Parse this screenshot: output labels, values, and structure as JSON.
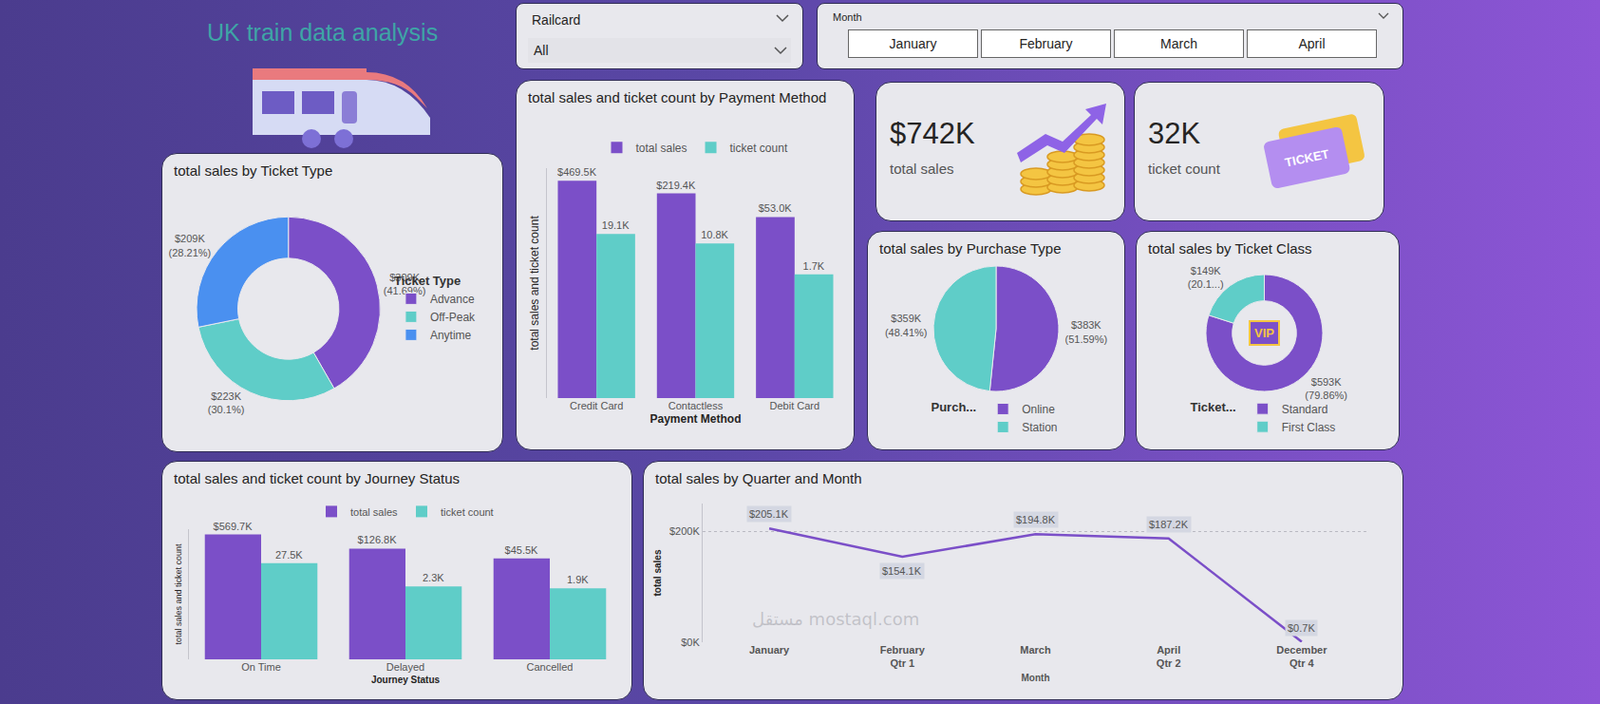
{
  "header": {
    "title": "UK train data analysis"
  },
  "slicers": [
    {
      "label": "Railcard",
      "value": "All"
    },
    {
      "label": "Month",
      "options": [
        "January",
        "February",
        "March",
        "April"
      ]
    }
  ],
  "cards": [
    {
      "value": "$742K",
      "label": "total sales"
    },
    {
      "value": "32K",
      "label": "ticket count",
      "icon_text": "TICKET"
    }
  ],
  "watermark": [
    "مستقل",
    "mostaql.com"
  ],
  "chart_data": [
    {
      "type": "donut",
      "title": "total sales by Ticket Type",
      "categories": [
        "Advance",
        "Off-Peak",
        "Anytime"
      ],
      "values": [
        309,
        223,
        209
      ],
      "value_labels": [
        "$309K (41.69%)",
        "$223K (30.1%)",
        "$209K (28.21%)"
      ],
      "colors": [
        "#7b4fc8",
        "#5fcdc8",
        "#4a90f0"
      ],
      "legend_title": "Ticket Type",
      "legend": "right",
      "data_labels": true
    },
    {
      "type": "bar",
      "title": "total sales and ticket count by Payment Method",
      "categories": [
        "Credit Card",
        "Contactless",
        "Debit Card"
      ],
      "series": [
        {
          "name": "total sales",
          "color": "#7b4fc8",
          "values": [
            469500,
            219400,
            53000
          ],
          "value_labels": [
            "$469.5K",
            "$219.4K",
            "$53.0K"
          ]
        },
        {
          "name": "ticket count",
          "color": "#5fcdc8",
          "values": [
            19100,
            10800,
            1700
          ],
          "value_labels": [
            "19.1K",
            "10.8K",
            "1.7K"
          ]
        }
      ],
      "xlabel": "Payment Method",
      "ylabel": "total sales and ticket count",
      "log": "y",
      "ylim": [
        1,
        1000000
      ],
      "tick_labels": "x",
      "grid": false,
      "legend": "top",
      "data_labels": true
    },
    {
      "type": "pie",
      "title": "total sales by Purchase Type",
      "categories": [
        "Online",
        "Station"
      ],
      "values": [
        383,
        359
      ],
      "value_labels": [
        "$383K (51.59%)",
        "$359K (48.41%)"
      ],
      "colors": [
        "#7b4fc8",
        "#5fcdc8"
      ],
      "legend_title": "Purch...",
      "legend": "bottom",
      "data_labels": true
    },
    {
      "type": "donut",
      "title": "total sales by Ticket Class",
      "categories": [
        "Standard",
        "First Class"
      ],
      "values": [
        593,
        149
      ],
      "value_labels": [
        "$593K (79.86%)",
        "$149K (20.1...)"
      ],
      "colors": [
        "#7b4fc8",
        "#5fcdc8"
      ],
      "legend_title": "Ticket...",
      "legend": "bottom",
      "data_labels": true,
      "center_label": "VIP"
    },
    {
      "type": "bar",
      "title": "total sales and ticket count by Journey Status",
      "categories": [
        "On Time",
        "Delayed",
        "Cancelled"
      ],
      "series": [
        {
          "name": "total sales",
          "color": "#7b4fc8",
          "values": [
            569700,
            126800,
            45500
          ],
          "value_labels": [
            "$569.7K",
            "$126.8K",
            "$45.5K"
          ]
        },
        {
          "name": "ticket count",
          "color": "#5fcdc8",
          "values": [
            27500,
            2300,
            1900
          ],
          "value_labels": [
            "27.5K",
            "2.3K",
            "1.9K"
          ]
        }
      ],
      "xlabel": "Journey Status",
      "ylabel": "total sales and ticket count",
      "log": "y",
      "ylim": [
        1,
        1000000
      ],
      "tick_labels": "x",
      "grid": false,
      "legend": "top",
      "data_labels": true
    },
    {
      "type": "line",
      "title": "total sales by Quarter and Month",
      "categories": [
        "January",
        "February",
        "March",
        "April",
        "December"
      ],
      "quarters": [
        "Qtr 1",
        "Qtr 1",
        "Qtr 1",
        "Qtr 2",
        "Qtr 4"
      ],
      "values": [
        205100,
        154100,
        194800,
        187200,
        700
      ],
      "value_labels": [
        "$205.1K",
        "$154.1K",
        "$194.8K",
        "$187.2K",
        "$0.7K"
      ],
      "color": "#7b4fc8",
      "xlabel": "Month",
      "ylabel": "total sales",
      "ylim": [
        0,
        250000
      ],
      "yticks": [
        {
          "value": 0,
          "label": "$0K"
        },
        {
          "value": 200000,
          "label": "$200K"
        }
      ],
      "grid": true,
      "data_labels": true
    }
  ]
}
